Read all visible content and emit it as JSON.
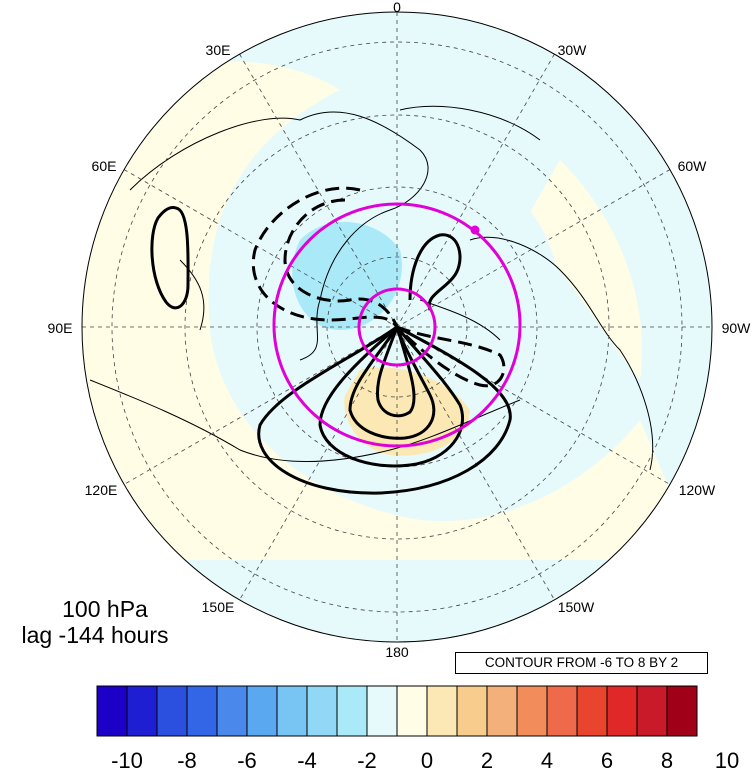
{
  "map": {
    "projection": "north polar stereographic",
    "longitude_labels": [
      "0",
      "30E",
      "30W",
      "60E",
      "60W",
      "90E",
      "90W",
      "120E",
      "120W",
      "150E",
      "150W",
      "180"
    ]
  },
  "annotations": {
    "level": "100 hPa",
    "lag": "lag -144 hours",
    "contour_info": "CONTOUR FROM -6 TO 8 BY 2"
  },
  "colorbar": {
    "ticks": [
      "-10",
      "-8",
      "-6",
      "-4",
      "-2",
      "0",
      "2",
      "4",
      "6",
      "8",
      "10"
    ],
    "colors": [
      "#1c00c8",
      "#1e1ed2",
      "#2b50e0",
      "#3366e6",
      "#4a88ec",
      "#5aa8f0",
      "#78c4f2",
      "#90d8f6",
      "#aaeaf8",
      "#e6fafc",
      "#fffde6",
      "#fbe8b4",
      "#f7cc8c",
      "#f4b07a",
      "#f28c5a",
      "#ee6a4a",
      "#e8442e",
      "#e02828",
      "#c81a28",
      "#a00018"
    ]
  },
  "colors": {
    "contour": "#000000",
    "marker": "#e000d8",
    "positive_fill": "#fbe8b4",
    "negative_fill": "#aaeaf8"
  }
}
